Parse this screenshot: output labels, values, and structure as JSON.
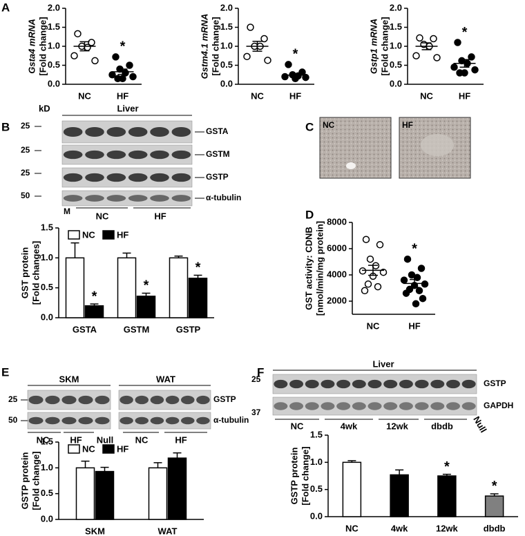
{
  "chart_data": [
    {
      "type": "scatter",
      "y_label": [
        "Gsta4 mRNA",
        "[Fold change]"
      ],
      "categories": [
        "NC",
        "HF"
      ],
      "points": [
        [
          1.33,
          1.1,
          1.0,
          0.97,
          0.75,
          0.62
        ],
        [
          0.72,
          0.5,
          0.4,
          0.3,
          0.25,
          0.2,
          0.15,
          0.15
        ]
      ],
      "means": [
        1.0,
        0.33
      ],
      "errors": [
        0.12,
        0.07
      ],
      "marker_fill": [
        "#ffffff",
        "#000000"
      ],
      "significance": [
        null,
        "*"
      ],
      "ylim": [
        0,
        2
      ],
      "yticks": [
        {
          "value": 0,
          "label": "0.0"
        },
        0.5,
        {
          "value": 1,
          "label": "1.0"
        },
        1.5,
        {
          "value": 2,
          "label": "2.0"
        }
      ]
    },
    {
      "type": "scatter",
      "y_label": [
        "Gstm4.1 mRNA",
        "[Fold change]"
      ],
      "categories": [
        "NC",
        "HF"
      ],
      "points": [
        [
          1.5,
          1.2,
          1.0,
          1.0,
          0.73,
          0.63
        ],
        [
          0.52,
          0.32,
          0.25,
          0.22,
          0.2,
          0.18,
          0.15
        ]
      ],
      "means": [
        1.0,
        0.24
      ],
      "errors": [
        0.13,
        0.04
      ],
      "marker_fill": [
        "#ffffff",
        "#000000"
      ],
      "significance": [
        null,
        "*"
      ],
      "ylim": [
        0,
        2
      ],
      "yticks": [
        {
          "value": 0,
          "label": "0.0"
        },
        0.5,
        {
          "value": 1,
          "label": "1.0"
        },
        1.5,
        {
          "value": 2,
          "label": "2.0"
        }
      ]
    },
    {
      "type": "scatter",
      "y_label": [
        "Gstp1 mRNA",
        "[Fold change]"
      ],
      "categories": [
        "NC",
        "HF"
      ],
      "points": [
        [
          1.22,
          1.2,
          1.05,
          1.0,
          0.75,
          0.7
        ],
        [
          1.1,
          0.72,
          0.62,
          0.55,
          0.45,
          0.38,
          0.3,
          0.3
        ]
      ],
      "means": [
        1.0,
        0.55
      ],
      "errors": [
        0.09,
        0.1
      ],
      "marker_fill": [
        "#ffffff",
        "#000000"
      ],
      "significance": [
        null,
        "*"
      ],
      "ylim": [
        0,
        2
      ],
      "yticks": [
        {
          "value": 0,
          "label": "0.0"
        },
        0.5,
        {
          "value": 1,
          "label": "1.0"
        },
        1.5,
        {
          "value": 2,
          "label": "2.0"
        }
      ]
    },
    {
      "type": "bar",
      "y_label": [
        "GST protein",
        "[Fold changes]"
      ],
      "categories": [
        "GSTA",
        "GSTM",
        "GSTP"
      ],
      "series": [
        {
          "name": "NC",
          "color": "#ffffff",
          "values": [
            1.0,
            1.0,
            1.0
          ],
          "errors": [
            0.25,
            0.08,
            0.03
          ],
          "significance": [
            null,
            null,
            null
          ]
        },
        {
          "name": "HF",
          "color": "#000000",
          "values": [
            0.2,
            0.36,
            0.66
          ],
          "errors": [
            0.03,
            0.05,
            0.05
          ],
          "significance": [
            "*",
            "*",
            "*"
          ]
        }
      ],
      "legend": "upper left",
      "ylim": [
        0,
        1.5
      ],
      "yticks": [
        {
          "value": 0,
          "label": "0.0"
        },
        0.5,
        {
          "value": 1,
          "label": "1.0"
        },
        1.5
      ]
    },
    {
      "type": "scatter",
      "y_label": [
        "GST activity: CDNB",
        "[nmol/min/mg protein]"
      ],
      "categories": [
        "NC",
        "HF"
      ],
      "points": [
        [
          6700,
          6300,
          5200,
          4700,
          4300,
          4200,
          3900,
          3300,
          3100,
          2800
        ],
        [
          5200,
          4500,
          4000,
          3800,
          3600,
          3300,
          3200,
          2900,
          2800,
          2600,
          2200,
          1800
        ]
      ],
      "means": [
        4350,
        3350
      ],
      "errors": [
        380,
        300
      ],
      "marker_fill": [
        "#ffffff",
        "#000000"
      ],
      "significance": [
        null,
        "*"
      ],
      "ylim": [
        1000,
        8000
      ],
      "yticks": [
        2000,
        4000,
        6000,
        8000
      ]
    },
    {
      "type": "bar",
      "y_label": [
        "GSTP protein",
        "[Fold change]"
      ],
      "categories": [
        "SKM",
        "WAT"
      ],
      "series": [
        {
          "name": "NC",
          "color": "#ffffff",
          "values": [
            1.0,
            1.0
          ],
          "errors": [
            0.13,
            0.1
          ],
          "significance": [
            null,
            null
          ]
        },
        {
          "name": "HF",
          "color": "#000000",
          "values": [
            0.93,
            1.19
          ],
          "errors": [
            0.08,
            0.1
          ],
          "significance": [
            null,
            null
          ]
        }
      ],
      "legend": "upper left",
      "ylim": [
        0,
        1.5
      ],
      "yticks": [
        {
          "value": 0,
          "label": "0.0"
        },
        0.5,
        {
          "value": 1,
          "label": "1.0"
        },
        1.5
      ]
    },
    {
      "type": "bar",
      "y_label": [
        "GSTP protein",
        "[Fold change]"
      ],
      "categories": [
        "NC",
        "4wk",
        "12wk",
        "dbdb"
      ],
      "series": [
        {
          "colors": [
            "#ffffff",
            "#000000",
            "#000000",
            "#808080"
          ],
          "values": [
            1.0,
            0.77,
            0.75,
            0.38
          ],
          "errors": [
            0.03,
            0.09,
            0.03,
            0.04
          ],
          "significance": [
            null,
            null,
            "*",
            "*"
          ]
        }
      ],
      "ylim": [
        0,
        1.5
      ],
      "yticks": [
        {
          "value": 0,
          "label": "0.0"
        },
        0.5,
        {
          "value": 1,
          "label": "1.0"
        },
        1.5
      ]
    }
  ],
  "panel_letters": [
    "A",
    "B",
    "C",
    "D",
    "E",
    "F"
  ],
  "blot_b": {
    "unit": "kD",
    "tissue": "Liver",
    "markers": [
      "25",
      "25",
      "25",
      "50"
    ],
    "bands": [
      "GSTA",
      "GSTM",
      "GSTP",
      "α-tubulin"
    ],
    "lane_label": "M",
    "groups": [
      "NC",
      "HF"
    ]
  },
  "image_c": {
    "labels": [
      "NC",
      "HF"
    ]
  },
  "blot_e": {
    "tissues": [
      "SKM",
      "WAT"
    ],
    "markers": [
      "25",
      "50"
    ],
    "bands": [
      "GSTP",
      "α-tubulin"
    ],
    "groups": [
      "NC",
      "HF",
      "Null",
      "NC",
      "HF"
    ]
  },
  "blot_f": {
    "tissue": "Liver",
    "markers": [
      "25",
      "37"
    ],
    "bands": [
      "GSTP",
      "GAPDH"
    ],
    "groups": [
      "NC",
      "4wk",
      "12wk",
      "dbdb",
      "Null"
    ]
  }
}
